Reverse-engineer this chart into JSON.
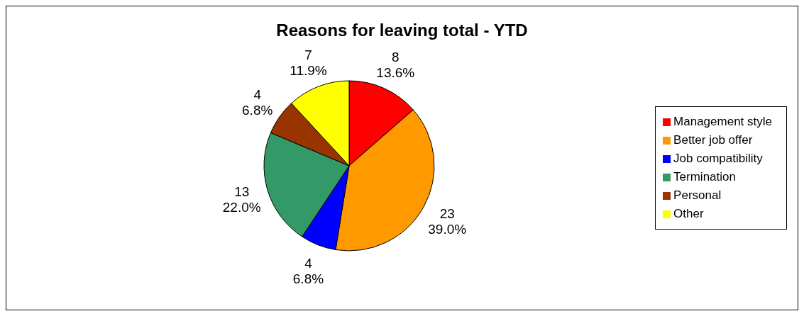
{
  "chart_data": {
    "type": "pie",
    "title": "Reasons for leaving total - YTD",
    "categories": [
      "Management style",
      "Better job offer",
      "Job compatibility",
      "Termination",
      "Personal",
      "Other"
    ],
    "values": [
      8,
      23,
      4,
      13,
      4,
      7
    ],
    "colors": [
      "#ff0000",
      "#ff9900",
      "#0000ff",
      "#339966",
      "#993300",
      "#ffff00"
    ],
    "value_labels": [
      "8\n13.6%",
      "23\n39.0%",
      "4\n6.8%",
      "13\n22.0%",
      "4\n6.8%",
      "7\n11.9%"
    ],
    "legend": "right"
  }
}
